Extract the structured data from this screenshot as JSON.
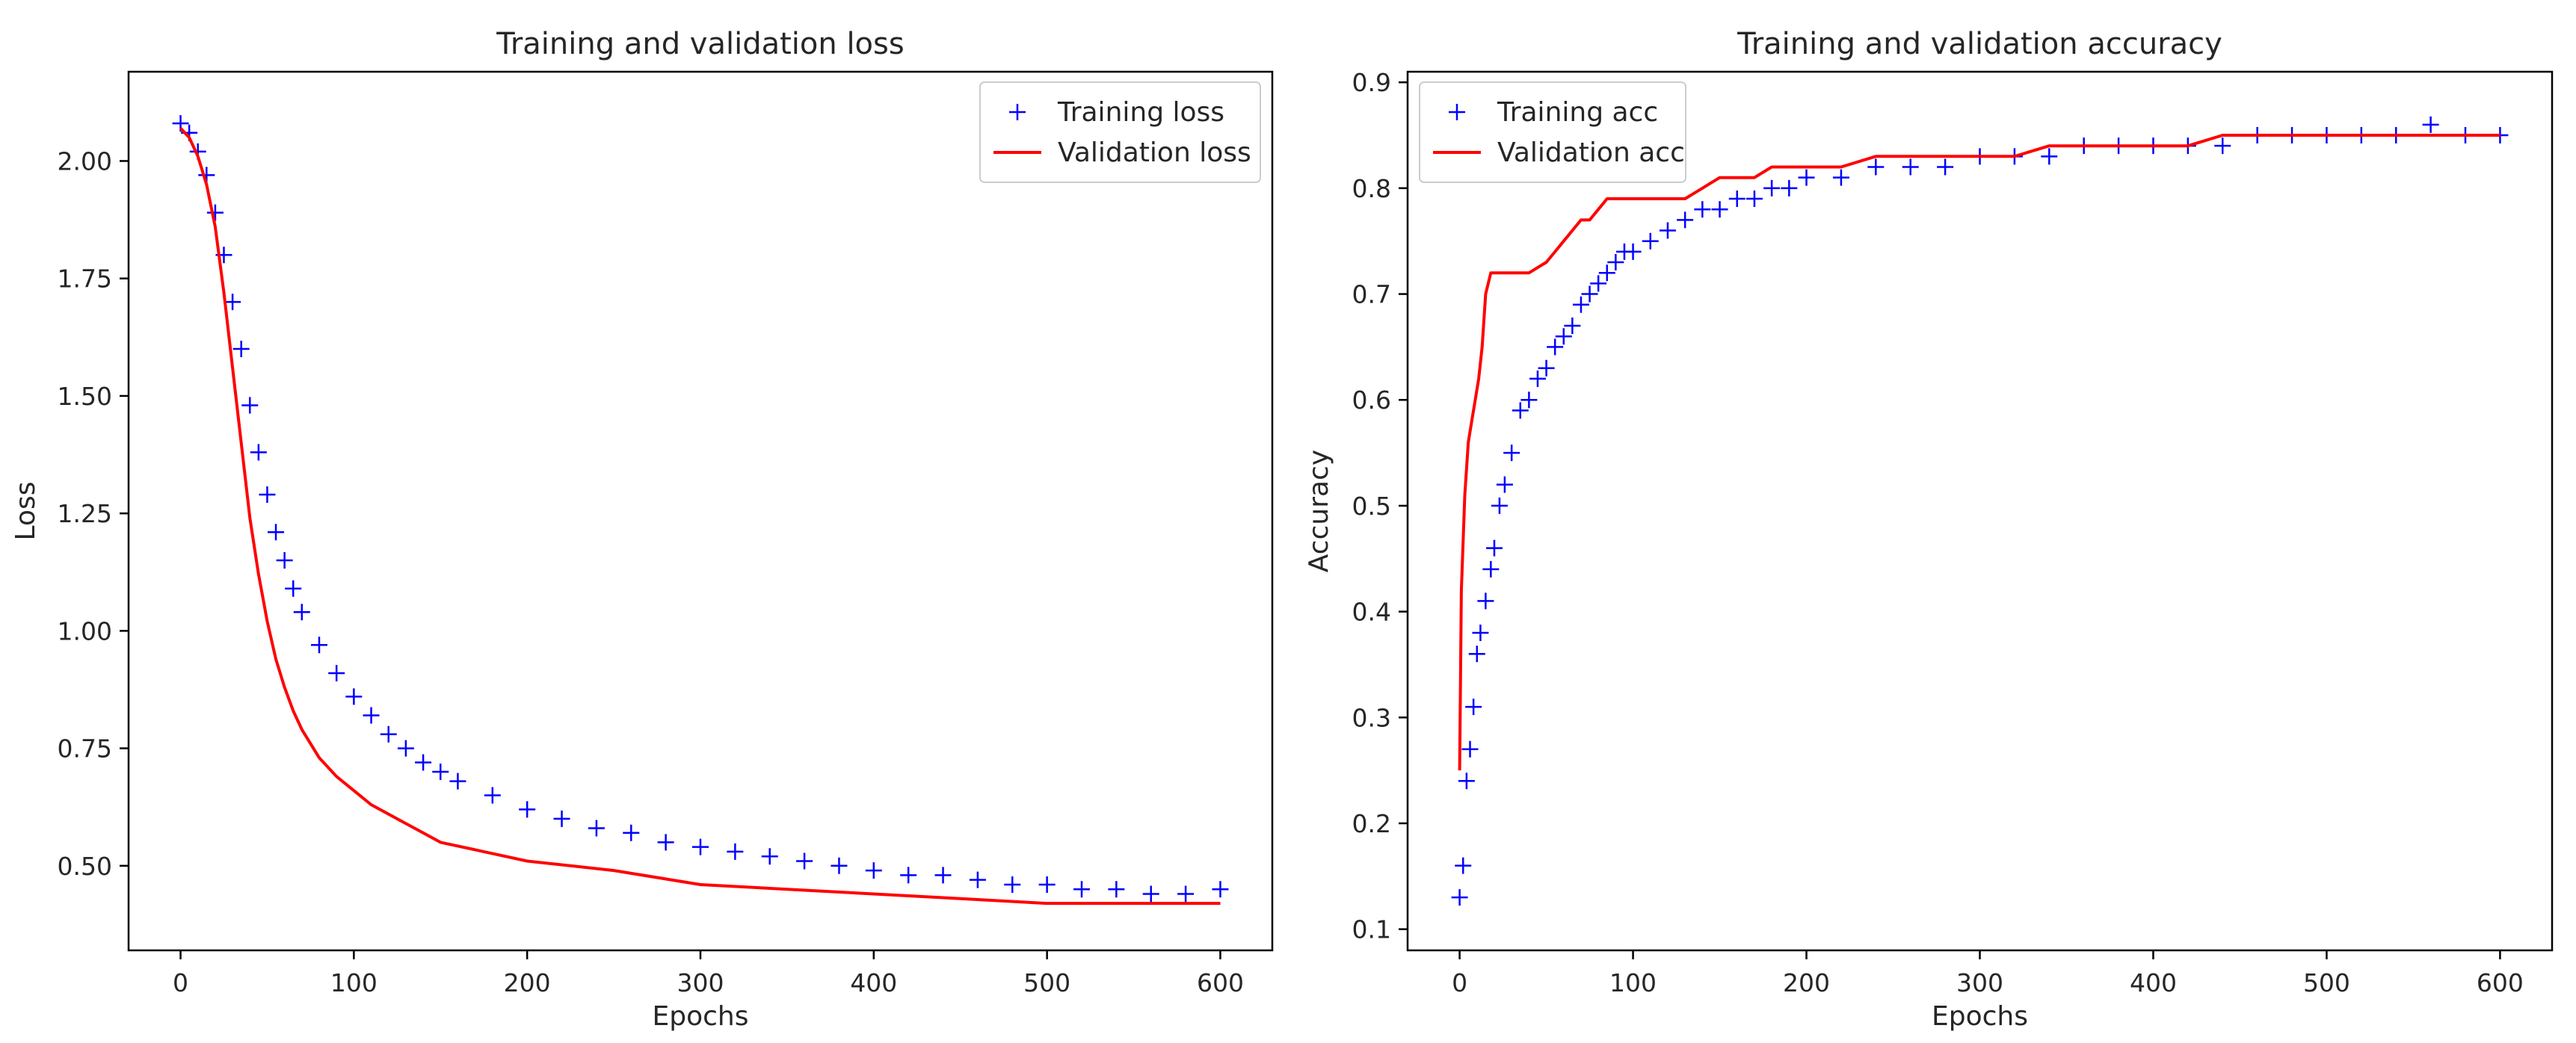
{
  "chart_data": [
    {
      "type": "line",
      "title": "Training and validation loss",
      "xlabel": "Epochs",
      "ylabel": "Loss",
      "xlim": [
        -30,
        630
      ],
      "ylim": [
        0.32,
        2.19
      ],
      "xticks": [
        0,
        100,
        200,
        300,
        400,
        500,
        600
      ],
      "xtick_labels": [
        "0",
        "100",
        "200",
        "300",
        "400",
        "500",
        "600"
      ],
      "yticks": [
        0.5,
        0.75,
        1.0,
        1.25,
        1.5,
        1.75,
        2.0
      ],
      "ytick_labels": [
        "0.50",
        "0.75",
        "1.00",
        "1.25",
        "1.50",
        "1.75",
        "2.00"
      ],
      "grid": false,
      "legend_location": "upper right",
      "series": [
        {
          "name": "Training loss",
          "style": "markers",
          "marker": "+",
          "color": "#0000ff",
          "x": [
            0,
            5,
            10,
            15,
            20,
            25,
            30,
            35,
            40,
            45,
            50,
            55,
            60,
            65,
            70,
            80,
            90,
            100,
            110,
            120,
            130,
            140,
            150,
            160,
            180,
            200,
            220,
            240,
            260,
            280,
            300,
            320,
            340,
            360,
            380,
            400,
            420,
            440,
            460,
            480,
            500,
            520,
            540,
            560,
            580,
            600
          ],
          "y": [
            2.08,
            2.06,
            2.02,
            1.97,
            1.89,
            1.8,
            1.7,
            1.6,
            1.48,
            1.38,
            1.29,
            1.21,
            1.15,
            1.09,
            1.04,
            0.97,
            0.91,
            0.86,
            0.82,
            0.78,
            0.75,
            0.72,
            0.7,
            0.68,
            0.65,
            0.62,
            0.6,
            0.58,
            0.57,
            0.55,
            0.54,
            0.53,
            0.52,
            0.51,
            0.5,
            0.49,
            0.48,
            0.48,
            0.47,
            0.46,
            0.46,
            0.45,
            0.45,
            0.44,
            0.44,
            0.45
          ]
        },
        {
          "name": "Validation loss",
          "style": "line",
          "color": "#ff0000",
          "x": [
            0,
            5,
            10,
            15,
            20,
            25,
            30,
            35,
            40,
            45,
            50,
            55,
            60,
            65,
            70,
            80,
            90,
            100,
            110,
            120,
            130,
            140,
            150,
            175,
            200,
            250,
            300,
            350,
            400,
            450,
            500,
            550,
            600
          ],
          "y": [
            2.07,
            2.05,
            2.01,
            1.95,
            1.86,
            1.72,
            1.56,
            1.4,
            1.24,
            1.12,
            1.02,
            0.94,
            0.88,
            0.83,
            0.79,
            0.73,
            0.69,
            0.66,
            0.63,
            0.61,
            0.59,
            0.57,
            0.55,
            0.53,
            0.51,
            0.49,
            0.46,
            0.45,
            0.44,
            0.43,
            0.42,
            0.42,
            0.42
          ]
        }
      ]
    },
    {
      "type": "line",
      "title": "Training and validation accuracy",
      "xlabel": "Epochs",
      "ylabel": "Accuracy",
      "xlim": [
        -30,
        630
      ],
      "ylim": [
        0.08,
        0.91
      ],
      "xticks": [
        0,
        100,
        200,
        300,
        400,
        500,
        600
      ],
      "xtick_labels": [
        "0",
        "100",
        "200",
        "300",
        "400",
        "500",
        "600"
      ],
      "yticks": [
        0.1,
        0.2,
        0.3,
        0.4,
        0.5,
        0.6,
        0.7,
        0.8,
        0.9
      ],
      "ytick_labels": [
        "0.1",
        "0.2",
        "0.3",
        "0.4",
        "0.5",
        "0.6",
        "0.7",
        "0.8",
        "0.9"
      ],
      "grid": false,
      "legend_location": "upper left",
      "series": [
        {
          "name": "Training acc",
          "style": "markers",
          "marker": "+",
          "color": "#0000ff",
          "x": [
            0,
            2,
            4,
            6,
            8,
            10,
            12,
            15,
            18,
            20,
            23,
            26,
            30,
            35,
            40,
            45,
            50,
            55,
            60,
            65,
            70,
            75,
            80,
            85,
            90,
            95,
            100,
            110,
            120,
            130,
            140,
            150,
            160,
            170,
            180,
            190,
            200,
            220,
            240,
            260,
            280,
            300,
            320,
            340,
            360,
            380,
            400,
            420,
            440,
            460,
            480,
            500,
            520,
            540,
            560,
            580,
            600
          ],
          "y": [
            0.13,
            0.16,
            0.24,
            0.27,
            0.31,
            0.36,
            0.38,
            0.41,
            0.44,
            0.46,
            0.5,
            0.52,
            0.55,
            0.59,
            0.6,
            0.62,
            0.63,
            0.65,
            0.66,
            0.67,
            0.69,
            0.7,
            0.71,
            0.72,
            0.73,
            0.74,
            0.74,
            0.75,
            0.76,
            0.77,
            0.78,
            0.78,
            0.79,
            0.79,
            0.8,
            0.8,
            0.81,
            0.81,
            0.82,
            0.82,
            0.82,
            0.83,
            0.83,
            0.83,
            0.84,
            0.84,
            0.84,
            0.84,
            0.84,
            0.85,
            0.85,
            0.85,
            0.85,
            0.85,
            0.86,
            0.85,
            0.85
          ]
        },
        {
          "name": "Validation acc",
          "style": "line",
          "color": "#ff0000",
          "x": [
            0,
            1,
            3,
            5,
            7,
            9,
            11,
            13,
            15,
            18,
            20,
            25,
            30,
            40,
            50,
            55,
            60,
            65,
            70,
            75,
            80,
            85,
            90,
            100,
            110,
            120,
            130,
            140,
            150,
            160,
            170,
            180,
            190,
            200,
            220,
            240,
            260,
            280,
            300,
            320,
            340,
            360,
            380,
            400,
            420,
            440,
            460,
            480,
            500,
            520,
            540,
            560,
            580,
            600
          ],
          "y": [
            0.25,
            0.42,
            0.51,
            0.56,
            0.58,
            0.6,
            0.62,
            0.65,
            0.7,
            0.72,
            0.72,
            0.72,
            0.72,
            0.72,
            0.73,
            0.74,
            0.75,
            0.76,
            0.77,
            0.77,
            0.78,
            0.79,
            0.79,
            0.79,
            0.79,
            0.79,
            0.79,
            0.8,
            0.81,
            0.81,
            0.81,
            0.82,
            0.82,
            0.82,
            0.82,
            0.83,
            0.83,
            0.83,
            0.83,
            0.83,
            0.84,
            0.84,
            0.84,
            0.84,
            0.84,
            0.85,
            0.85,
            0.85,
            0.85,
            0.85,
            0.85,
            0.85,
            0.85,
            0.85
          ]
        }
      ]
    }
  ]
}
